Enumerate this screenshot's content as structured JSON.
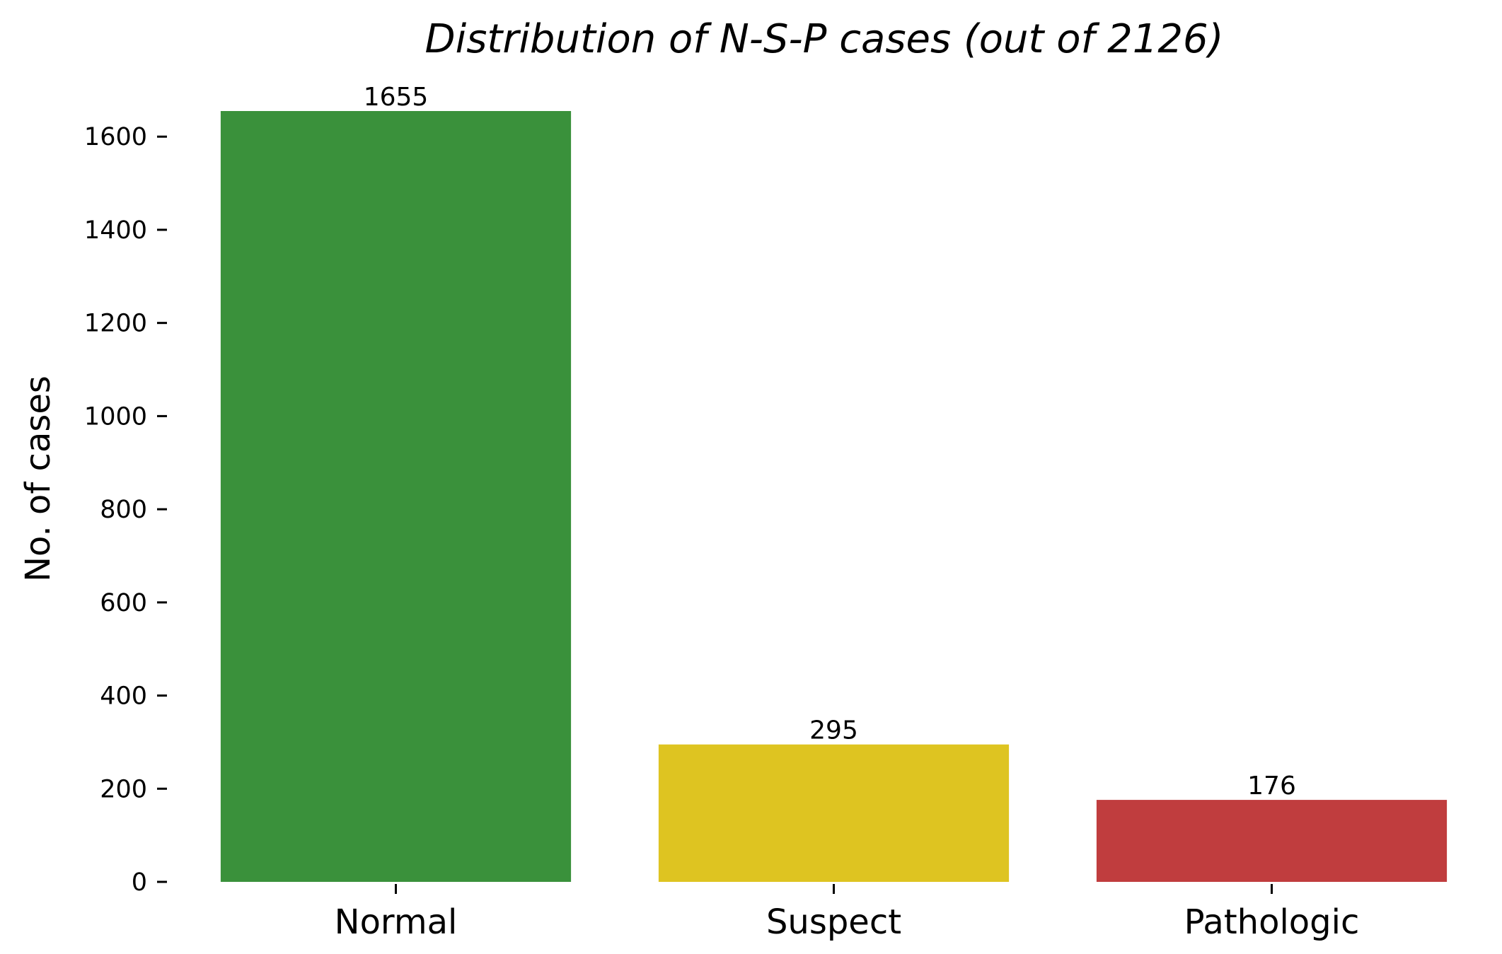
{
  "chart_data": {
    "type": "bar",
    "title": "Distribution of N-S-P cases (out of 2126)",
    "xlabel": "",
    "ylabel": "No. of cases",
    "categories": [
      "Normal",
      "Suspect",
      "Pathologic"
    ],
    "values": [
      1655,
      295,
      176
    ],
    "value_labels": [
      "1655",
      "295",
      "176"
    ],
    "colors": [
      "#3a913b",
      "#dec421",
      "#c03d3e"
    ],
    "ylim": [
      0,
      1655
    ],
    "yticks": [
      0,
      200,
      400,
      600,
      800,
      1000,
      1200,
      1400,
      1600
    ],
    "ytick_labels": [
      "0",
      "200",
      "400",
      "600",
      "800",
      "1000",
      "1200",
      "1400",
      "1600"
    ],
    "grid": false,
    "legend": "none"
  }
}
